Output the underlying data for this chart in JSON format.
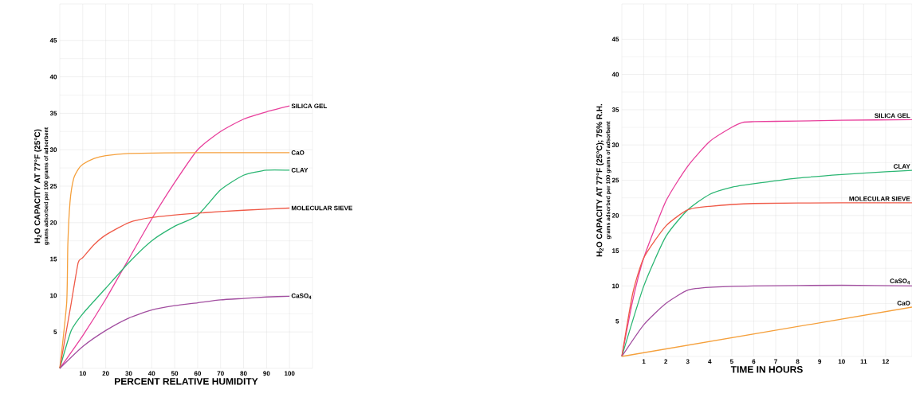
{
  "chart_data": [
    {
      "type": "line",
      "xlabel": "PERCENT RELATIVE HUMIDITY",
      "ylabel": "H$_{2}$O CAPACITY AT 77°F (25°C)",
      "annotations": [
        "grams adsorbed per 100 grams of adsorbent"
      ],
      "xlim": [
        0,
        110
      ],
      "ylim": [
        0,
        50
      ],
      "xticks": [
        10,
        20,
        30,
        40,
        50,
        60,
        70,
        80,
        90,
        100
      ],
      "yticks": [
        5,
        10,
        15,
        20,
        25,
        30,
        35,
        40,
        45
      ],
      "grid": true,
      "legend": false,
      "series": [
        {
          "name": "SILICA GEL",
          "color": "#e8409c",
          "x": [
            0,
            10,
            20,
            30,
            40,
            50,
            60,
            70,
            80,
            90,
            100
          ],
          "values": [
            0,
            4.5,
            9.5,
            15,
            20.5,
            25.5,
            30,
            32.5,
            34.2,
            35.2,
            36
          ]
        },
        {
          "name": "CaO",
          "color": "#f5a03c",
          "x": [
            0,
            3,
            3.5,
            4.5,
            6,
            8,
            10,
            15,
            20,
            30,
            60,
            100
          ],
          "values": [
            0,
            9,
            17,
            23,
            26,
            27.3,
            28,
            28.8,
            29.2,
            29.5,
            29.6,
            29.6
          ]
        },
        {
          "name": "CLAY",
          "color": "#2bb673",
          "x": [
            0,
            5,
            10,
            20,
            30,
            40,
            50,
            60,
            70,
            80,
            90,
            100
          ],
          "values": [
            0,
            5.2,
            7.5,
            11,
            14.5,
            17.5,
            19.5,
            21,
            24.5,
            26.5,
            27.2,
            27.2
          ]
        },
        {
          "name": "MOLECULAR SIEVE",
          "color": "#ef5a48",
          "x": [
            0,
            5,
            8,
            10,
            15,
            20,
            30,
            40,
            60,
            80,
            100
          ],
          "values": [
            0,
            9,
            14.5,
            15.2,
            17,
            18.3,
            20,
            20.7,
            21.3,
            21.7,
            22
          ]
        },
        {
          "name": "CaSO$_{4}$",
          "color": "#a24ea0",
          "x": [
            0,
            10,
            20,
            30,
            40,
            50,
            60,
            70,
            80,
            90,
            100
          ],
          "values": [
            0,
            3,
            5.2,
            6.9,
            8,
            8.6,
            9,
            9.4,
            9.6,
            9.8,
            9.9
          ]
        }
      ]
    },
    {
      "type": "line",
      "xlabel": "TIME IN HOURS",
      "ylabel": "H$_{2}$O CAPACITY AT 77°F (25°C); 75% R.H.",
      "annotations": [
        "grams adsorbed per 100 grams of adsorbent"
      ],
      "xlim": [
        0,
        13.2
      ],
      "ylim": [
        0,
        50
      ],
      "xticks": [
        1,
        2,
        3,
        4,
        5,
        6,
        7,
        8,
        9,
        10,
        11,
        12
      ],
      "yticks": [
        5,
        10,
        15,
        20,
        25,
        30,
        35,
        40,
        45
      ],
      "grid": true,
      "legend": false,
      "series": [
        {
          "name": "SILICA GEL",
          "color": "#e8409c",
          "x": [
            0,
            0.5,
            1,
            2,
            3,
            4,
            5,
            5.5,
            6,
            8,
            10,
            13.2
          ],
          "values": [
            0,
            8,
            14,
            22,
            27,
            30.5,
            32.5,
            33.2,
            33.3,
            33.4,
            33.5,
            33.6
          ]
        },
        {
          "name": "CLAY",
          "color": "#2bb673",
          "x": [
            0,
            1,
            2,
            3,
            4,
            5,
            6,
            8,
            10,
            12,
            13.2
          ],
          "values": [
            0,
            10,
            17,
            20.8,
            23,
            24,
            24.5,
            25.3,
            25.8,
            26.2,
            26.4
          ]
        },
        {
          "name": "MOLECULAR SIEVE",
          "color": "#ef5a48",
          "x": [
            0,
            0.5,
            1,
            2,
            3,
            4,
            6,
            10,
            13.2
          ],
          "values": [
            0,
            9,
            14,
            18.5,
            20.8,
            21.3,
            21.7,
            21.8,
            21.8
          ]
        },
        {
          "name": "CaSO$_{4}$",
          "color": "#a24ea0",
          "x": [
            0,
            1,
            2,
            3,
            4,
            6,
            10,
            13.2
          ],
          "values": [
            0,
            4.5,
            7.5,
            9.4,
            9.8,
            10,
            10.1,
            10
          ]
        },
        {
          "name": "CaO",
          "color": "#f5a03c",
          "x": [
            0,
            13.2
          ],
          "values": [
            0,
            7
          ]
        }
      ]
    }
  ]
}
